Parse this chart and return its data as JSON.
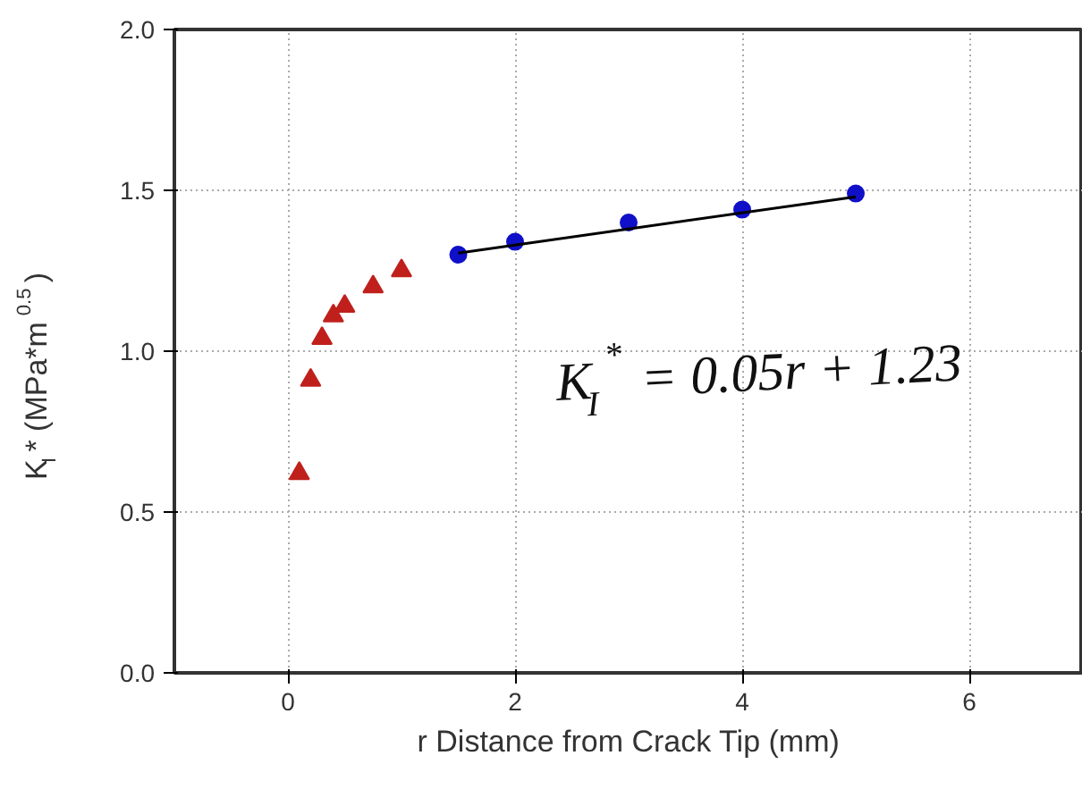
{
  "chart_data": {
    "type": "scatter",
    "xlabel": "r Distance from Crack Tip (mm)",
    "ylabel": "K$_{I}$* (MPa*m$^{0.5}$)",
    "xlim": [
      -1,
      7
    ],
    "ylim": [
      0,
      2
    ],
    "xticks": [
      0,
      2,
      4,
      6
    ],
    "yticks": [
      {
        "value": 0,
        "label": "0.0"
      },
      {
        "value": 0.5,
        "label": "0.5"
      },
      {
        "value": 1,
        "label": "1.0"
      },
      {
        "value": 1.5,
        "label": "1.5"
      },
      {
        "value": 2,
        "label": "2.0"
      }
    ],
    "grid": true,
    "series": [
      {
        "marker": "triangle",
        "color": "#c0201c",
        "x": [
          0.1,
          0.2,
          0.3,
          0.4,
          0.5,
          0.75,
          1.0
        ],
        "values": [
          0.62,
          0.91,
          1.04,
          1.11,
          1.14,
          1.2,
          1.25
        ]
      },
      {
        "marker": "circle",
        "color": "#1010c8",
        "x": [
          1.5,
          2,
          3,
          4,
          5
        ],
        "values": [
          1.3,
          1.34,
          1.4,
          1.44,
          1.49
        ]
      },
      {
        "type": "line",
        "marker": "none",
        "color": "#000000",
        "x": [
          1.5,
          5
        ],
        "values": [
          1.305,
          1.48
        ]
      }
    ],
    "annotations": [
      "K$_{I}$$^{*}$ = 0.05r + 1.23"
    ]
  }
}
